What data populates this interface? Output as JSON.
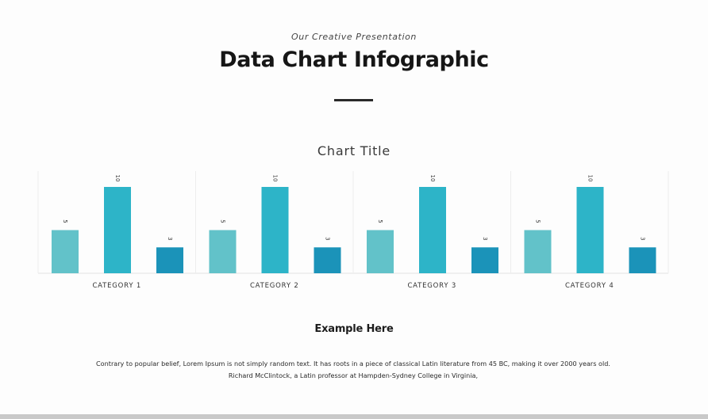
{
  "header": {
    "subtitle": "Our Creative Presentation",
    "title": "Data Chart Infographic"
  },
  "chart_data": {
    "type": "bar",
    "title": "Chart Title",
    "categories": [
      "CATEGORY 1",
      "CATEGORY 2",
      "CATEGORY 3",
      "CATEGORY 4"
    ],
    "series": [
      {
        "values": [
          5,
          5,
          5,
          5
        ],
        "color": "#62c2c9"
      },
      {
        "values": [
          10,
          10,
          10,
          10
        ],
        "color": "#2db4c8"
      },
      {
        "values": [
          3,
          3,
          3,
          3
        ],
        "color": "#1b93b9"
      }
    ],
    "data_labels": true,
    "ylim": [
      0,
      10
    ],
    "xlabel": "",
    "ylabel": "",
    "legend": "none"
  },
  "body": {
    "heading": "Example Here",
    "paragraph": "Contrary to popular belief, Lorem Ipsum is not simply random text. It has roots in a piece of classical Latin literature from 45 BC, making it over 2000 years old. Richard McClintock, a Latin professor at Hampden-Sydney College in Virginia,"
  }
}
